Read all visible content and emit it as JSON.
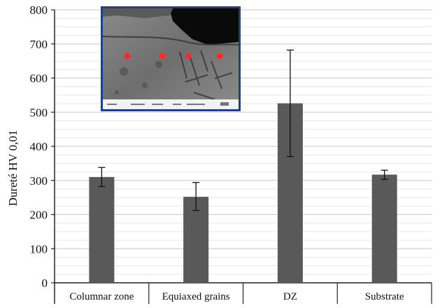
{
  "chart_data": {
    "type": "bar",
    "title": "",
    "xlabel": "",
    "ylabel": "Dureté HV 0,01",
    "ylim": [
      0,
      800
    ],
    "yticks": [
      0,
      100,
      200,
      300,
      400,
      500,
      600,
      700,
      800
    ],
    "grid": true,
    "categories": [
      "Columnar zone",
      "Equiaxed grains",
      "DZ",
      "Substrate"
    ],
    "values": [
      310,
      252,
      526,
      317
    ],
    "error": [
      [
        282,
        338
      ],
      [
        212,
        294
      ],
      [
        370,
        682
      ],
      [
        303,
        330
      ]
    ],
    "bar_color": "#595959"
  },
  "inset": {
    "description_icon": "micrograph-inset",
    "border_color": "#1f3f8a",
    "marker_color": "#ff2a2a",
    "marker_count": 4
  }
}
